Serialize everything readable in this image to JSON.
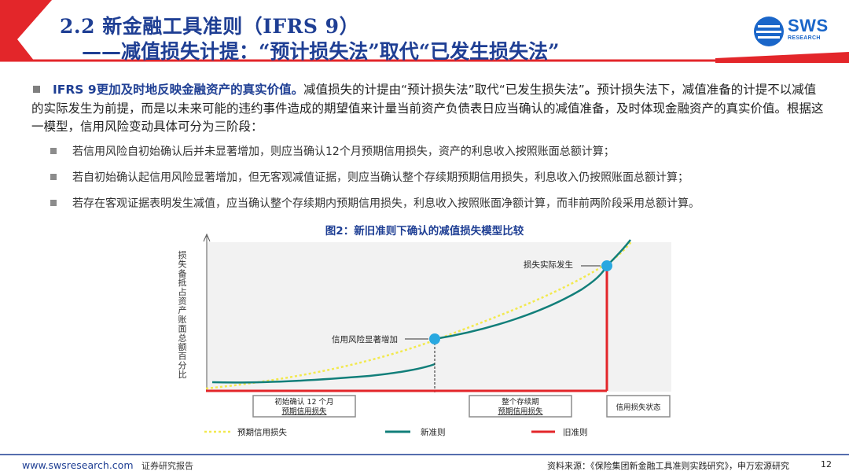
{
  "header": {
    "title_line1": "2.2 新金融工具准则（IFRS 9）",
    "title_line2": "——减值损失计提：“预计损失法”取代“已发生损失法”",
    "logo_text": "SWS",
    "logo_sub": "RESEARCH"
  },
  "intro": {
    "bold_lead": "IFRS  9更加及时地反映金融资产的真实价值。",
    "text_a": "减值损失的计提由“预计损失法”取代“已发生损失法”",
    "bold_end": "。",
    "text_b": "预计损失法下，减值准备的计提不以减值的实际发生为前提，而是以未来可能的违约事件造成的期望值来计量当前资产负债表日应当确认的减值准备，及时体现金融资产的真实价值。根据这一模型，信用风险变动具体可分为三阶段："
  },
  "bullets": [
    "若信用风险自初始确认后并未显著增加，则应当确认12个月预期信用损失，资产的利息收入按照账面总额计算；",
    "若自初始确认起信用风险显著增加，但无客观减值证据，则应当确认整个存续期预期信用损失，利息收入仍按照账面总额计算；",
    "若存在客观证据表明发生减值，应当确认整个存续期内预期信用损失，利息收入按照账面净额计算，而非前两阶段采用总额计算。"
  ],
  "figure": {
    "title": "图2：新旧准则下确认的减值损失模型比较",
    "y_axis_label": "损失备抵占资产账面总额百分比",
    "annotations": {
      "risk_increase": "信用风险显著增加",
      "loss_occurred": "损失实际发生"
    },
    "stage_boxes": {
      "stage1_line1": "初始确认 12 个月",
      "stage1_line2": "预期信用损失",
      "stage2_line1": "整个存续期",
      "stage2_line2": "预期信用损失",
      "stage3": "信用损失状态"
    },
    "legend": [
      {
        "name": "预期信用损失",
        "color": "#f2e94e",
        "style": "dotted"
      },
      {
        "name": "新准则",
        "color": "#127f7a",
        "style": "solid"
      },
      {
        "name": "旧准则",
        "color": "#e3262a",
        "style": "solid"
      }
    ],
    "colors": {
      "dot": "#29a8e0",
      "plot_bg": "#f2f2f2",
      "box_border": "#8c8c8c"
    }
  },
  "footer": {
    "url": "www.swsresearch.com",
    "doc_type": "证券研究报告",
    "source": "资料来源：《保险集团新金融工具准则实践研究》，申万宏源研究",
    "page": "12"
  }
}
